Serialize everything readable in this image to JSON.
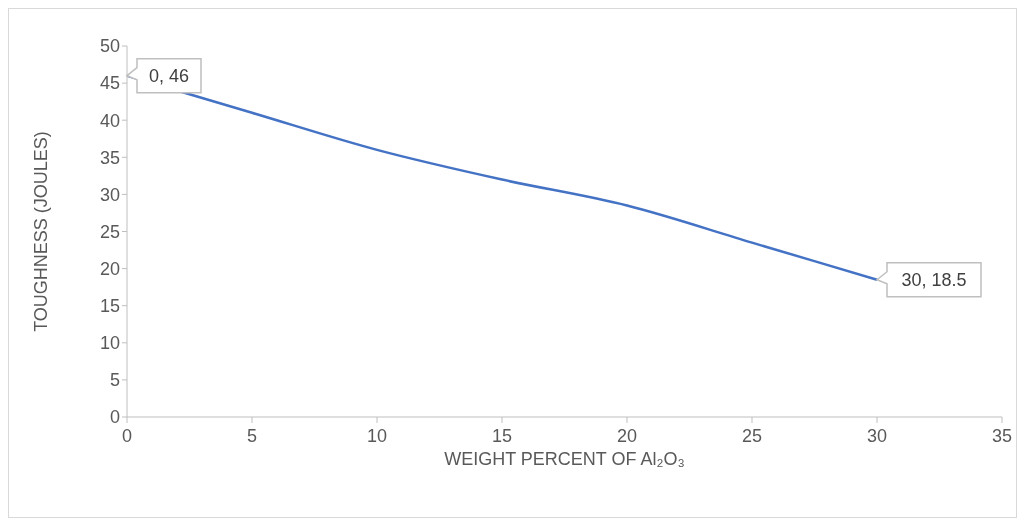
{
  "chart_data": {
    "type": "line",
    "xlabel": "WEIGHT PERCENT OF Al₂O₃",
    "ylabel": "TOUGHNESS (JOULES)",
    "x": [
      0,
      5,
      10,
      15,
      20,
      25,
      30
    ],
    "series": [
      {
        "color": "#4472c4",
        "values": [
          46,
          41,
          36,
          32,
          28.5,
          23.5,
          18.5
        ],
        "value_labels": [
          "0, 46",
          null,
          null,
          null,
          null,
          null,
          "30, 18.5"
        ]
      }
    ],
    "xlim": [
      0,
      35
    ],
    "xticks": [
      0,
      5,
      10,
      15,
      20,
      25,
      30,
      35
    ],
    "ylim": [
      0,
      50
    ],
    "yticks": [
      0,
      5,
      10,
      15,
      20,
      25,
      30,
      35,
      40,
      45,
      50
    ],
    "grid": false,
    "legend": false,
    "marker": "none",
    "line_style": "solid"
  }
}
